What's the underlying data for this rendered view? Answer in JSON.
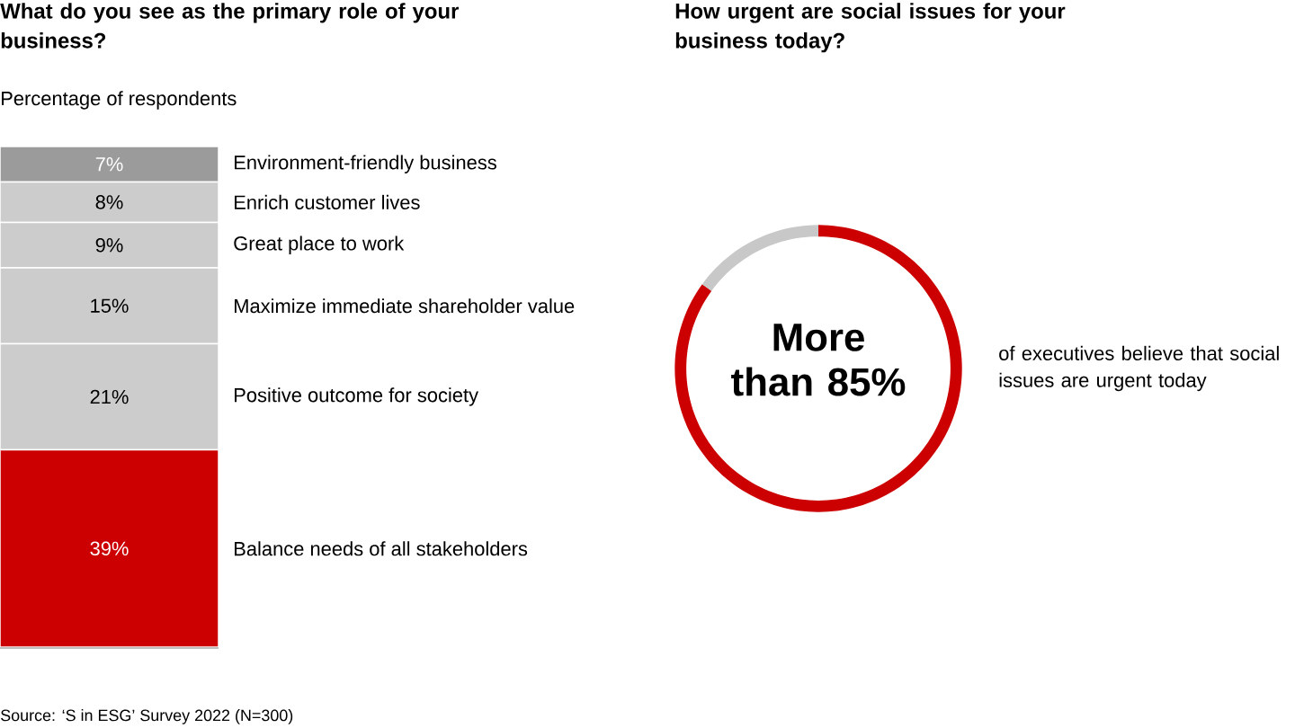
{
  "chart_data": [
    {
      "type": "bar",
      "stacked": true,
      "title": "What do you see as the primary role of your business?",
      "subtitle": "Percentage of respondents",
      "categories": [
        null
      ],
      "series": [
        {
          "name": "Balance needs of all stakeholders",
          "color": "#cc0000",
          "values": [
            39
          ],
          "value_labels": [
            "39%"
          ]
        },
        {
          "name": "Positive outcome for society",
          "color": "#cccccc",
          "values": [
            21
          ],
          "value_labels": [
            "21%"
          ]
        },
        {
          "name": "Maximize immediate shareholder value",
          "color": "#cccccc",
          "values": [
            15
          ],
          "value_labels": [
            "15%"
          ]
        },
        {
          "name": "Great place to work",
          "color": "#cccccc",
          "values": [
            9
          ],
          "value_labels": [
            "9%"
          ]
        },
        {
          "name": "Enrich customer lives",
          "color": "#cccccc",
          "values": [
            8
          ],
          "value_labels": [
            "8%"
          ]
        },
        {
          "name": "Environment-friendly business",
          "color": "#9b9b9b",
          "values": [
            7
          ],
          "value_labels": [
            "7%"
          ]
        }
      ],
      "annotations": [
        "Source: ‘S in ESG’ Survey 2022 (N=300)"
      ]
    },
    {
      "type": "donut",
      "title": "How urgent are social issues for your business today?",
      "categories": [
        null,
        null
      ],
      "values": [
        85,
        15
      ],
      "colors": [
        "#cc0000",
        "#c8c8c8"
      ],
      "annotations": [
        "More than 85%",
        "of executives believe that social issues are urgent today"
      ]
    }
  ]
}
